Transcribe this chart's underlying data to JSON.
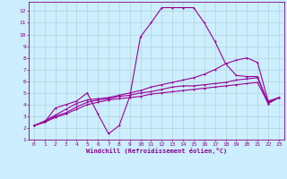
{
  "xlabel": "Windchill (Refroidissement éolien,°C)",
  "bg_color": "#cceeff",
  "grid_color": "#aacccc",
  "line_color": "#990099",
  "xlim": [
    -0.5,
    23.5
  ],
  "ylim": [
    1,
    12.8
  ],
  "xticks": [
    0,
    1,
    2,
    3,
    4,
    5,
    6,
    7,
    8,
    9,
    10,
    11,
    12,
    13,
    14,
    15,
    16,
    17,
    18,
    19,
    20,
    21,
    22,
    23
  ],
  "yticks": [
    1,
    2,
    3,
    4,
    5,
    6,
    7,
    8,
    9,
    10,
    11,
    12
  ],
  "series1_x": [
    0,
    1,
    2,
    3,
    4,
    5,
    6,
    7,
    8,
    9,
    10,
    11,
    12,
    13,
    14,
    15,
    16,
    17,
    18,
    19,
    20,
    21,
    22,
    23
  ],
  "series1_y": [
    2.2,
    2.5,
    3.7,
    4.0,
    4.3,
    5.0,
    3.2,
    1.5,
    2.2,
    4.7,
    9.8,
    11.0,
    12.3,
    12.3,
    12.3,
    12.3,
    11.0,
    9.4,
    7.5,
    6.5,
    6.4,
    6.4,
    4.1,
    4.6
  ],
  "series2_x": [
    0,
    1,
    2,
    3,
    4,
    5,
    6,
    7,
    8,
    9,
    10,
    11,
    12,
    13,
    14,
    15,
    16,
    17,
    18,
    19,
    20,
    21,
    22,
    23
  ],
  "series2_y": [
    2.2,
    2.6,
    3.1,
    3.6,
    4.1,
    4.4,
    4.5,
    4.6,
    4.8,
    5.0,
    5.2,
    5.5,
    5.7,
    5.9,
    6.1,
    6.3,
    6.6,
    7.0,
    7.5,
    7.8,
    8.0,
    7.6,
    4.3,
    4.6
  ],
  "series3_x": [
    0,
    1,
    2,
    3,
    4,
    5,
    6,
    7,
    8,
    9,
    10,
    11,
    12,
    13,
    14,
    15,
    16,
    17,
    18,
    19,
    20,
    21,
    22,
    23
  ],
  "series3_y": [
    2.2,
    2.5,
    3.0,
    3.3,
    3.8,
    4.2,
    4.4,
    4.5,
    4.7,
    4.8,
    5.0,
    5.1,
    5.3,
    5.5,
    5.6,
    5.6,
    5.7,
    5.8,
    5.9,
    6.1,
    6.2,
    6.3,
    4.2,
    4.6
  ],
  "series4_x": [
    0,
    1,
    2,
    3,
    4,
    5,
    6,
    7,
    8,
    9,
    10,
    11,
    12,
    13,
    14,
    15,
    16,
    17,
    18,
    19,
    20,
    21,
    22,
    23
  ],
  "series4_y": [
    2.2,
    2.5,
    2.9,
    3.2,
    3.6,
    4.0,
    4.2,
    4.4,
    4.5,
    4.6,
    4.7,
    4.9,
    5.0,
    5.1,
    5.2,
    5.3,
    5.4,
    5.5,
    5.6,
    5.7,
    5.8,
    5.9,
    4.1,
    4.6
  ]
}
